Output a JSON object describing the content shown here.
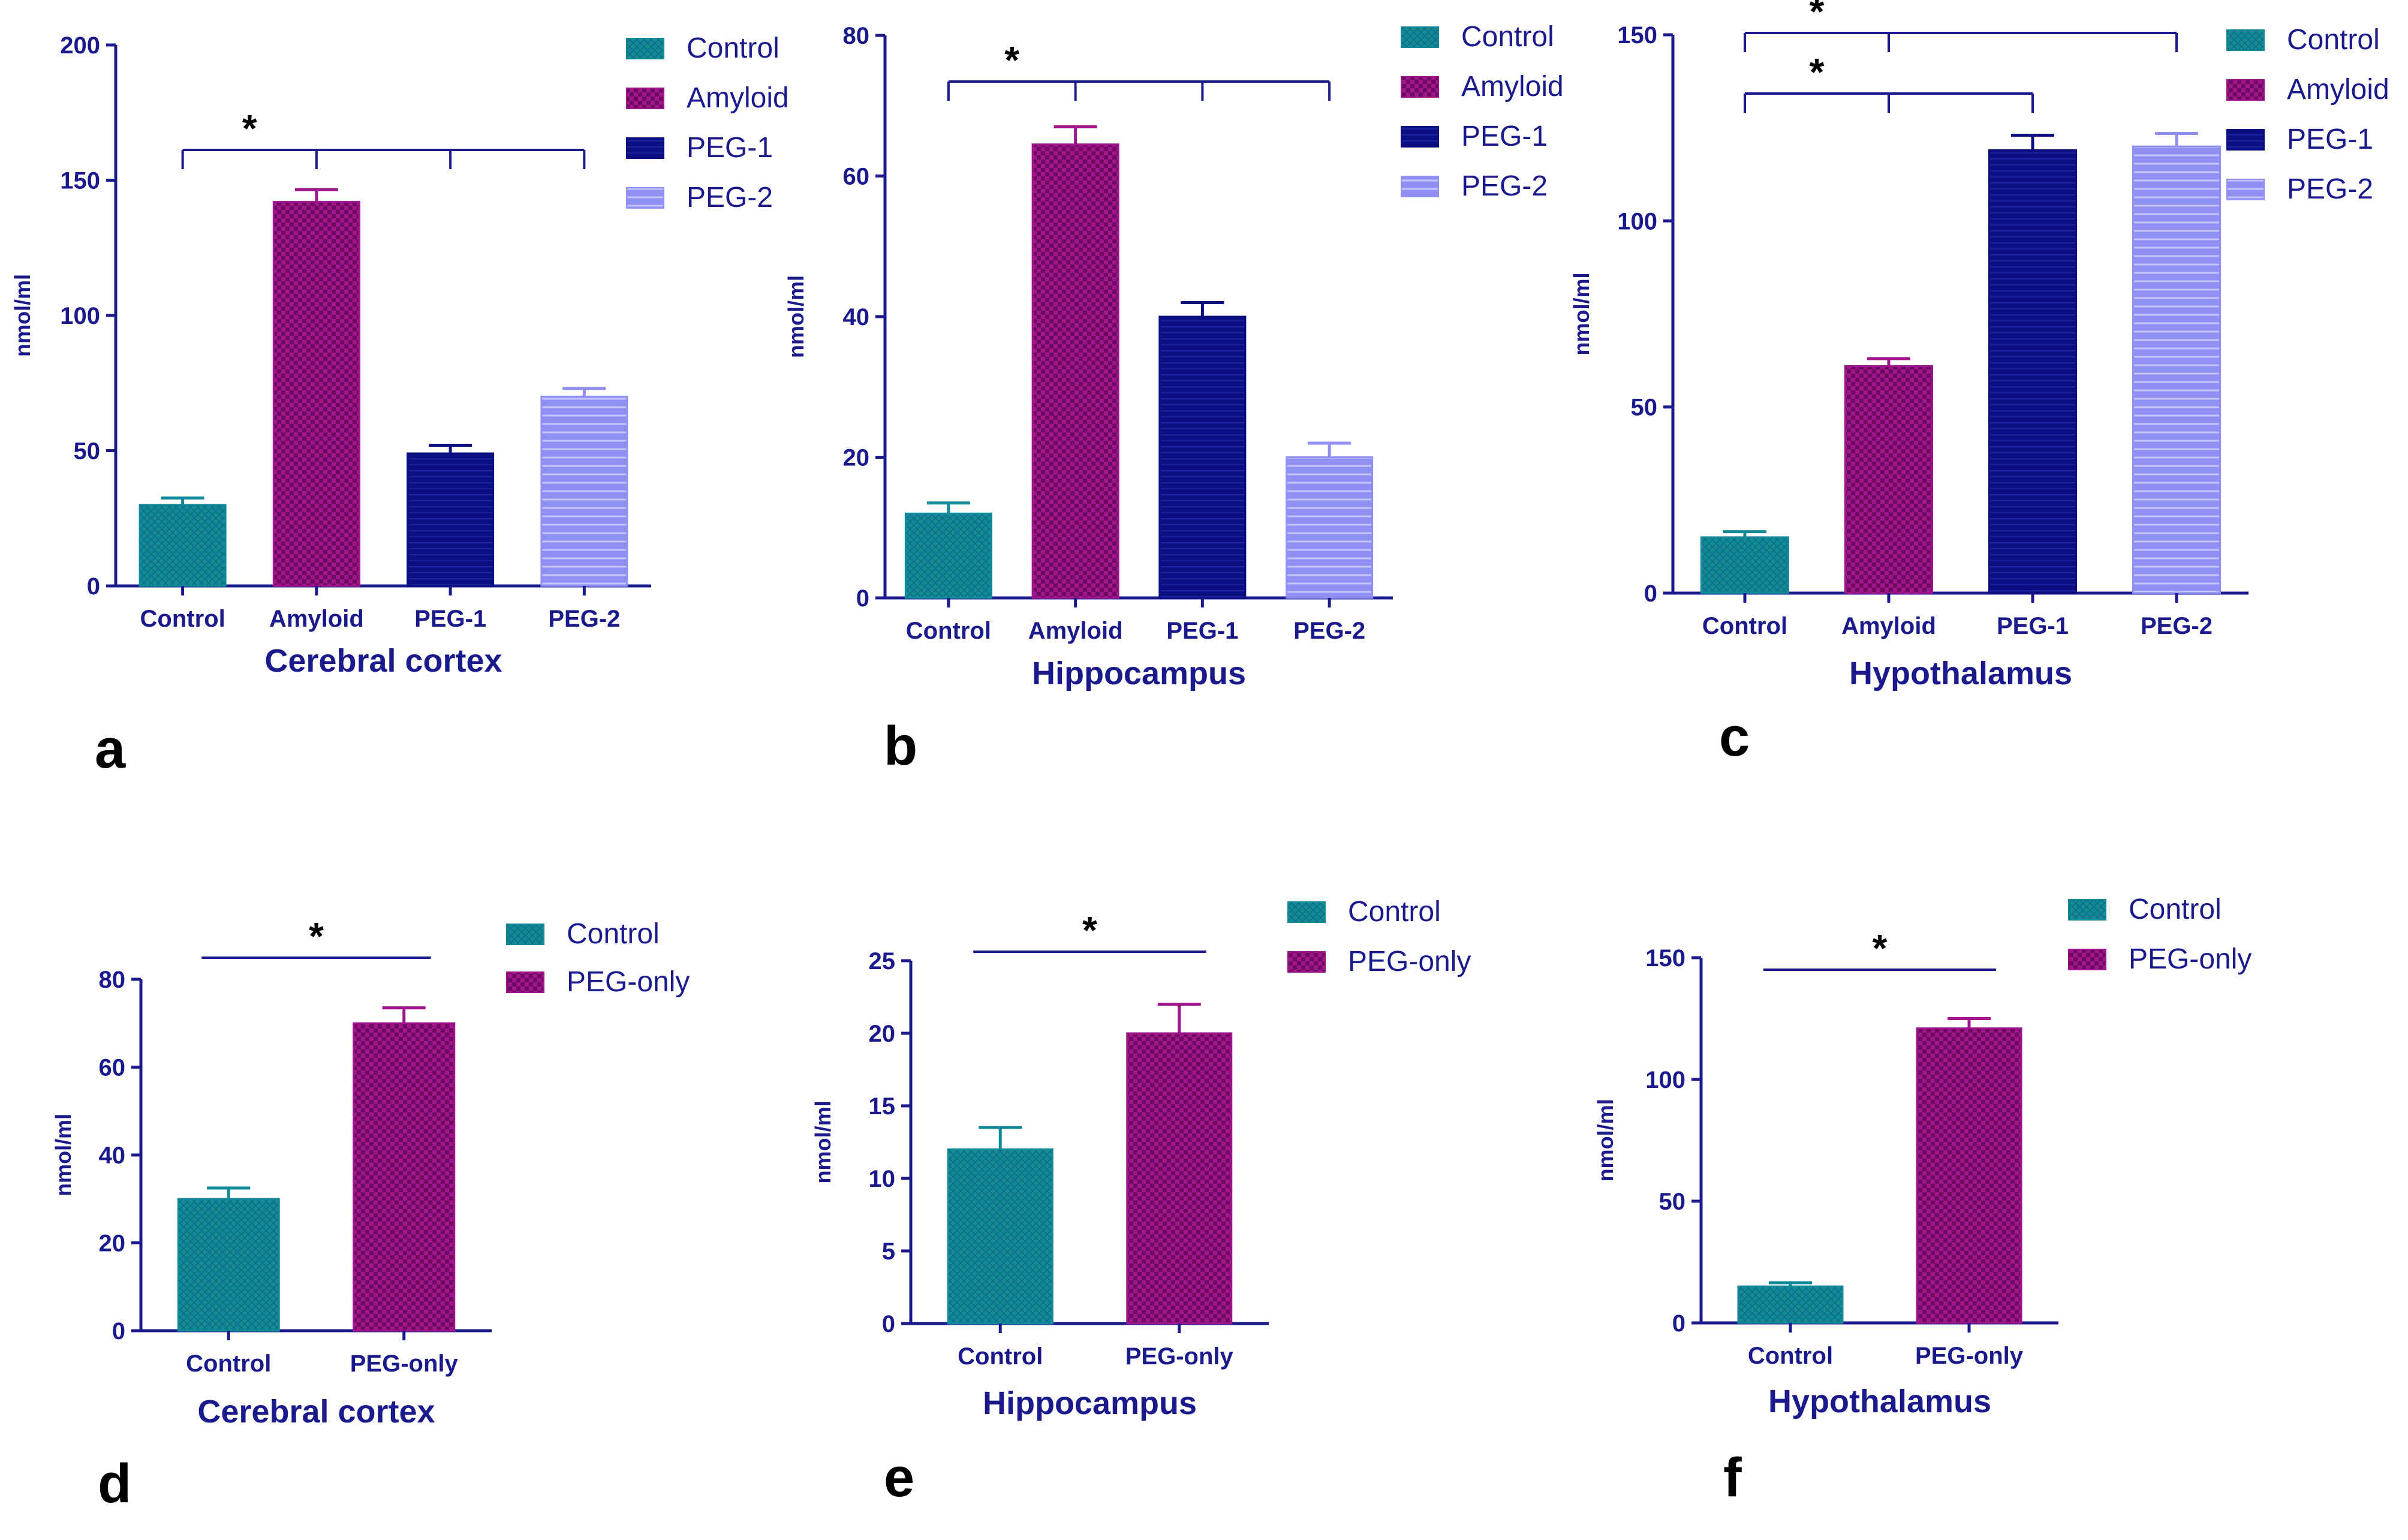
{
  "colors": {
    "axis": "#1a1a8c",
    "Control": "#128a9a",
    "Amyloid": "#a0148c",
    "PEG-1": "#0b0f82",
    "PEG-2": "#8f8ff4",
    "PEG-only": "#a0148c"
  },
  "chart_data": [
    {
      "type": "bar",
      "panel": "a",
      "title": "Cerebral cortex",
      "ylabel": "nmol/ml",
      "ylim": [
        0,
        200
      ],
      "yticks": [
        0,
        50,
        100,
        150,
        200
      ],
      "categories": [
        "Control",
        "Amyloid",
        "PEG-1",
        "PEG-2"
      ],
      "values": [
        30,
        142,
        49,
        70
      ],
      "errors": [
        2.5,
        4.5,
        3,
        3
      ],
      "legend": [
        "Control",
        "Amyloid",
        "PEG-1",
        "PEG-2"
      ],
      "significance": [
        {
          "label": "*",
          "groups": [
            "Control",
            "Amyloid",
            "PEG-1",
            "PEG-2"
          ]
        }
      ]
    },
    {
      "type": "bar",
      "panel": "b",
      "title": "Hippocampus",
      "ylabel": "nmol/ml",
      "ylim": [
        0,
        80
      ],
      "yticks": [
        0,
        20,
        40,
        60,
        80
      ],
      "categories": [
        "Control",
        "Amyloid",
        "PEG-1",
        "PEG-2"
      ],
      "values": [
        12,
        64.5,
        40,
        20
      ],
      "errors": [
        1.5,
        2.5,
        2,
        2
      ],
      "legend": [
        "Control",
        "Amyloid",
        "PEG-1",
        "PEG-2"
      ],
      "significance": [
        {
          "label": "*",
          "groups": [
            "Control",
            "Amyloid",
            "PEG-1",
            "PEG-2"
          ]
        }
      ]
    },
    {
      "type": "bar",
      "panel": "c",
      "title": "Hypothalamus",
      "ylabel": "nmol/ml",
      "ylim": [
        0,
        150
      ],
      "yticks": [
        0,
        50,
        100,
        150
      ],
      "categories": [
        "Control",
        "Amyloid",
        "PEG-1",
        "PEG-2"
      ],
      "values": [
        15,
        61,
        119,
        120
      ],
      "errors": [
        1.5,
        2,
        4,
        3.5
      ],
      "legend": [
        "Control",
        "Amyloid",
        "PEG-1",
        "PEG-2"
      ],
      "significance": [
        {
          "label": "*",
          "groups": [
            "Control",
            "Amyloid",
            "PEG-1"
          ]
        },
        {
          "label": "*",
          "groups": [
            "Control",
            "Amyloid",
            "PEG-2"
          ]
        }
      ]
    },
    {
      "type": "bar",
      "panel": "d",
      "title": "Cerebral cortex",
      "ylabel": "nmol/ml",
      "ylim": [
        0,
        80
      ],
      "yticks": [
        0,
        20,
        40,
        60,
        80
      ],
      "categories": [
        "Control",
        "PEG-only"
      ],
      "values": [
        30,
        70
      ],
      "errors": [
        2.5,
        3.5
      ],
      "legend": [
        "Control",
        "PEG-only"
      ],
      "significance": [
        {
          "label": "*",
          "groups": [
            "Control",
            "PEG-only"
          ]
        }
      ]
    },
    {
      "type": "bar",
      "panel": "e",
      "title": "Hippocampus",
      "ylabel": "nmol/ml",
      "ylim": [
        0,
        25
      ],
      "yticks": [
        0,
        5,
        10,
        15,
        20,
        25
      ],
      "categories": [
        "Control",
        "PEG-only"
      ],
      "values": [
        12,
        20
      ],
      "errors": [
        1.5,
        2
      ],
      "legend": [
        "Control",
        "PEG-only"
      ],
      "significance": [
        {
          "label": "*",
          "groups": [
            "Control",
            "PEG-only"
          ]
        }
      ]
    },
    {
      "type": "bar",
      "panel": "f",
      "title": "Hypothalamus",
      "ylabel": "nmol/ml",
      "ylim": [
        0,
        150
      ],
      "yticks": [
        0,
        50,
        100,
        150
      ],
      "categories": [
        "Control",
        "PEG-only"
      ],
      "values": [
        15,
        121
      ],
      "errors": [
        1.5,
        4
      ],
      "legend": [
        "Control",
        "PEG-only"
      ],
      "significance": [
        {
          "label": "*",
          "groups": [
            "Control",
            "PEG-only"
          ]
        }
      ]
    }
  ]
}
